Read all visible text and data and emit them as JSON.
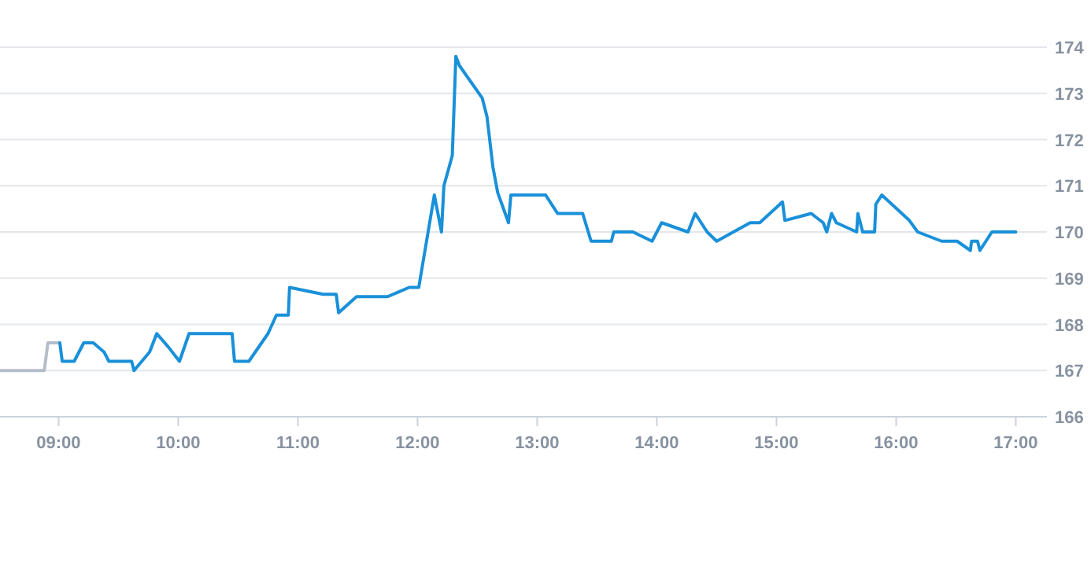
{
  "chart_data": {
    "type": "line",
    "xlim": [
      8.51,
      17.26
    ],
    "ylim": [
      166,
      174
    ],
    "xticks": [
      {
        "value": 9,
        "label": "09:00"
      },
      {
        "value": 10,
        "label": "10:00"
      },
      {
        "value": 11,
        "label": "11:00"
      },
      {
        "value": 12,
        "label": "12:00"
      },
      {
        "value": 13,
        "label": "13:00"
      },
      {
        "value": 14,
        "label": "14:00"
      },
      {
        "value": 15,
        "label": "15:00"
      },
      {
        "value": 16,
        "label": "16:00"
      },
      {
        "value": 17,
        "label": "17:00"
      }
    ],
    "yticks": [
      166,
      167,
      168,
      169,
      170,
      171,
      172,
      173,
      174
    ],
    "grid": "y",
    "marker": "none",
    "line_style": "solid",
    "series": [
      {
        "color": "#b4bec9",
        "x": [
          8.51,
          8.88,
          8.91,
          9.0
        ],
        "values": [
          167.0,
          167.0,
          167.6,
          167.6
        ]
      },
      {
        "color": "#1990d9",
        "x": [
          9.01,
          9.03,
          9.13,
          9.21,
          9.29,
          9.38,
          9.42,
          9.61,
          9.63,
          9.76,
          9.82,
          9.92,
          10.01,
          10.09,
          10.45,
          10.47,
          10.59,
          10.75,
          10.82,
          10.92,
          10.93,
          11.21,
          11.32,
          11.34,
          11.49,
          11.75,
          11.93,
          12.01,
          12.14,
          12.2,
          12.22,
          12.29,
          12.32,
          12.35,
          12.54,
          12.58,
          12.63,
          12.67,
          12.76,
          12.78,
          13.07,
          13.17,
          13.38,
          13.45,
          13.62,
          13.64,
          13.8,
          13.96,
          14.04,
          14.26,
          14.32,
          14.42,
          14.5,
          14.78,
          14.86,
          15.05,
          15.07,
          15.29,
          15.39,
          15.42,
          15.46,
          15.5,
          15.67,
          15.68,
          15.72,
          15.82,
          15.83,
          15.88,
          16.11,
          16.18,
          16.38,
          16.51,
          16.62,
          16.63,
          16.68,
          16.7,
          16.8,
          17.0
        ],
        "values": [
          167.6,
          167.2,
          167.2,
          167.6,
          167.6,
          167.4,
          167.2,
          167.2,
          167.0,
          167.4,
          167.8,
          167.5,
          167.2,
          167.8,
          167.8,
          167.2,
          167.2,
          167.8,
          168.2,
          168.2,
          168.8,
          168.65,
          168.65,
          168.25,
          168.6,
          168.6,
          168.8,
          168.8,
          170.8,
          170.0,
          171.0,
          171.65,
          173.8,
          173.6,
          172.9,
          172.5,
          171.4,
          170.85,
          170.2,
          170.8,
          170.8,
          170.4,
          170.4,
          169.8,
          169.8,
          170.0,
          170.0,
          169.8,
          170.2,
          170.0,
          170.4,
          170.0,
          169.8,
          170.2,
          170.2,
          170.65,
          170.25,
          170.4,
          170.2,
          170.0,
          170.4,
          170.2,
          170.0,
          170.4,
          170.0,
          170.0,
          170.6,
          170.8,
          170.25,
          170.0,
          169.8,
          169.8,
          169.6,
          169.8,
          169.8,
          169.6,
          170.0,
          170.0
        ]
      }
    ]
  }
}
